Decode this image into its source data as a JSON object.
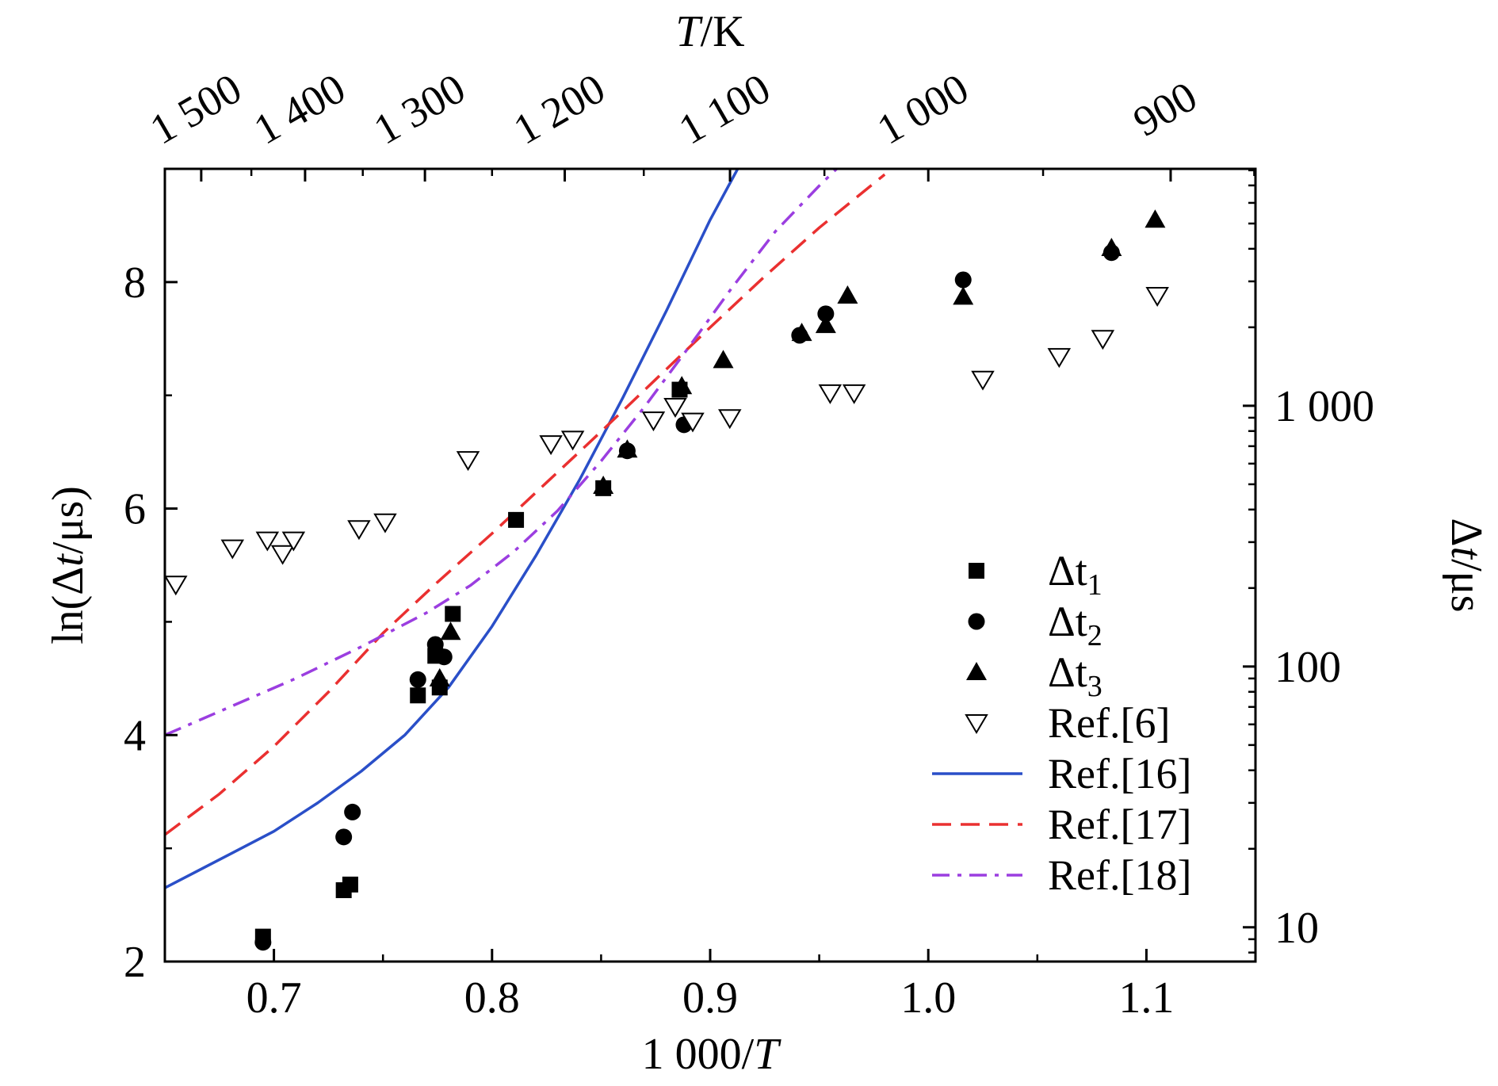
{
  "chart_data": {
    "type": "scatter",
    "xlabel": "1 000/T",
    "ylabel": "ln(Δt/μs)",
    "top_label": "T/K",
    "right_label": "Δt/μs",
    "xlim": [
      0.65,
      1.15
    ],
    "ylim": [
      2,
      9
    ],
    "x_ticks": [
      {
        "v": 0.7,
        "label": "0.7"
      },
      {
        "v": 0.8,
        "label": "0.8"
      },
      {
        "v": 0.9,
        "label": "0.9"
      },
      {
        "v": 1.0,
        "label": "1.0"
      },
      {
        "v": 1.1,
        "label": "1.1"
      }
    ],
    "y_ticks": [
      {
        "v": 2,
        "label": "2"
      },
      {
        "v": 4,
        "label": "4"
      },
      {
        "v": 6,
        "label": "6"
      },
      {
        "v": 8,
        "label": "8"
      }
    ],
    "top_ticks": [
      {
        "T": 1500,
        "label": "1 500"
      },
      {
        "T": 1400,
        "label": "1 400"
      },
      {
        "T": 1300,
        "label": "1 300"
      },
      {
        "T": 1200,
        "label": "1 200"
      },
      {
        "T": 1100,
        "label": "1 100"
      },
      {
        "T": 1000,
        "label": "1 000"
      },
      {
        "T": 900,
        "label": "900"
      }
    ],
    "right_ticks": [
      {
        "v": 10,
        "label": "10"
      },
      {
        "v": 100,
        "label": "100"
      },
      {
        "v": 1000,
        "label": "1 000"
      }
    ],
    "right_scale": "log",
    "grid": false,
    "legend_position": "bottom-right",
    "series": [
      {
        "name": "Δt₁",
        "label_main": "Δt",
        "label_sub": "1",
        "kind": "scatter",
        "marker": "square",
        "points": [
          [
            0.695,
            2.22
          ],
          [
            0.732,
            2.63
          ],
          [
            0.735,
            2.68
          ],
          [
            0.766,
            4.35
          ],
          [
            0.774,
            4.7
          ],
          [
            0.776,
            4.42
          ],
          [
            0.782,
            5.07
          ],
          [
            0.811,
            5.9
          ],
          [
            0.851,
            6.18
          ],
          [
            0.886,
            7.05
          ]
        ]
      },
      {
        "name": "Δt₂",
        "label_main": "Δt",
        "label_sub": "2",
        "kind": "scatter",
        "marker": "circle",
        "points": [
          [
            0.695,
            2.17
          ],
          [
            0.732,
            3.1
          ],
          [
            0.736,
            3.32
          ],
          [
            0.766,
            4.49
          ],
          [
            0.774,
            4.8
          ],
          [
            0.778,
            4.69
          ],
          [
            0.862,
            6.51
          ],
          [
            0.888,
            6.74
          ],
          [
            0.941,
            7.53
          ],
          [
            0.953,
            7.72
          ],
          [
            1.016,
            8.02
          ],
          [
            1.084,
            8.26
          ]
        ]
      },
      {
        "name": "Δt₃",
        "label_main": "Δt",
        "label_sub": "3",
        "kind": "scatter",
        "marker": "triangle",
        "points": [
          [
            0.776,
            4.5
          ],
          [
            0.781,
            4.91
          ],
          [
            0.851,
            6.2
          ],
          [
            0.862,
            6.52
          ],
          [
            0.887,
            7.08
          ],
          [
            0.906,
            7.31
          ],
          [
            0.942,
            7.55
          ],
          [
            0.953,
            7.62
          ],
          [
            0.963,
            7.88
          ],
          [
            1.016,
            7.87
          ],
          [
            1.084,
            8.3
          ],
          [
            1.104,
            8.55
          ]
        ]
      },
      {
        "name": "Ref.[6]",
        "kind": "scatter",
        "marker": "triangle-down-open",
        "points": [
          [
            0.655,
            5.33
          ],
          [
            0.681,
            5.65
          ],
          [
            0.697,
            5.72
          ],
          [
            0.704,
            5.6
          ],
          [
            0.709,
            5.72
          ],
          [
            0.739,
            5.82
          ],
          [
            0.751,
            5.88
          ],
          [
            0.789,
            6.43
          ],
          [
            0.827,
            6.57
          ],
          [
            0.837,
            6.61
          ],
          [
            0.874,
            6.78
          ],
          [
            0.884,
            6.9
          ],
          [
            0.892,
            6.77
          ],
          [
            0.909,
            6.8
          ],
          [
            0.955,
            7.02
          ],
          [
            0.966,
            7.02
          ],
          [
            1.025,
            7.14
          ],
          [
            1.06,
            7.34
          ],
          [
            1.08,
            7.5
          ],
          [
            1.105,
            7.88
          ]
        ]
      },
      {
        "name": "Ref.[16]",
        "kind": "line",
        "style": "solid",
        "color": "#2a4fc8",
        "points": [
          [
            0.65,
            2.65
          ],
          [
            0.68,
            2.95
          ],
          [
            0.7,
            3.15
          ],
          [
            0.72,
            3.4
          ],
          [
            0.74,
            3.68
          ],
          [
            0.76,
            4.0
          ],
          [
            0.78,
            4.42
          ],
          [
            0.8,
            4.96
          ],
          [
            0.82,
            5.58
          ],
          [
            0.84,
            6.25
          ],
          [
            0.86,
            6.98
          ],
          [
            0.88,
            7.75
          ],
          [
            0.9,
            8.55
          ],
          [
            0.916,
            9.12
          ]
        ]
      },
      {
        "name": "Ref.[17]",
        "kind": "line",
        "style": "dashed",
        "color": "#ea3030",
        "points": [
          [
            0.65,
            3.12
          ],
          [
            0.675,
            3.48
          ],
          [
            0.7,
            3.9
          ],
          [
            0.725,
            4.38
          ],
          [
            0.75,
            4.9
          ],
          [
            0.775,
            5.35
          ],
          [
            0.8,
            5.78
          ],
          [
            0.825,
            6.23
          ],
          [
            0.85,
            6.68
          ],
          [
            0.875,
            7.14
          ],
          [
            0.9,
            7.6
          ],
          [
            0.925,
            8.05
          ],
          [
            0.95,
            8.48
          ],
          [
            0.98,
            8.95
          ]
        ]
      },
      {
        "name": "Ref.[18]",
        "kind": "line",
        "style": "dashdot",
        "color": "#9b3ee0",
        "points": [
          [
            0.65,
            4.0
          ],
          [
            0.68,
            4.25
          ],
          [
            0.71,
            4.5
          ],
          [
            0.74,
            4.78
          ],
          [
            0.77,
            5.08
          ],
          [
            0.79,
            5.32
          ],
          [
            0.81,
            5.62
          ],
          [
            0.83,
            5.98
          ],
          [
            0.85,
            6.42
          ],
          [
            0.87,
            6.9
          ],
          [
            0.89,
            7.42
          ],
          [
            0.91,
            7.95
          ],
          [
            0.93,
            8.45
          ],
          [
            0.95,
            8.85
          ],
          [
            0.958,
            9.0
          ]
        ]
      }
    ]
  }
}
